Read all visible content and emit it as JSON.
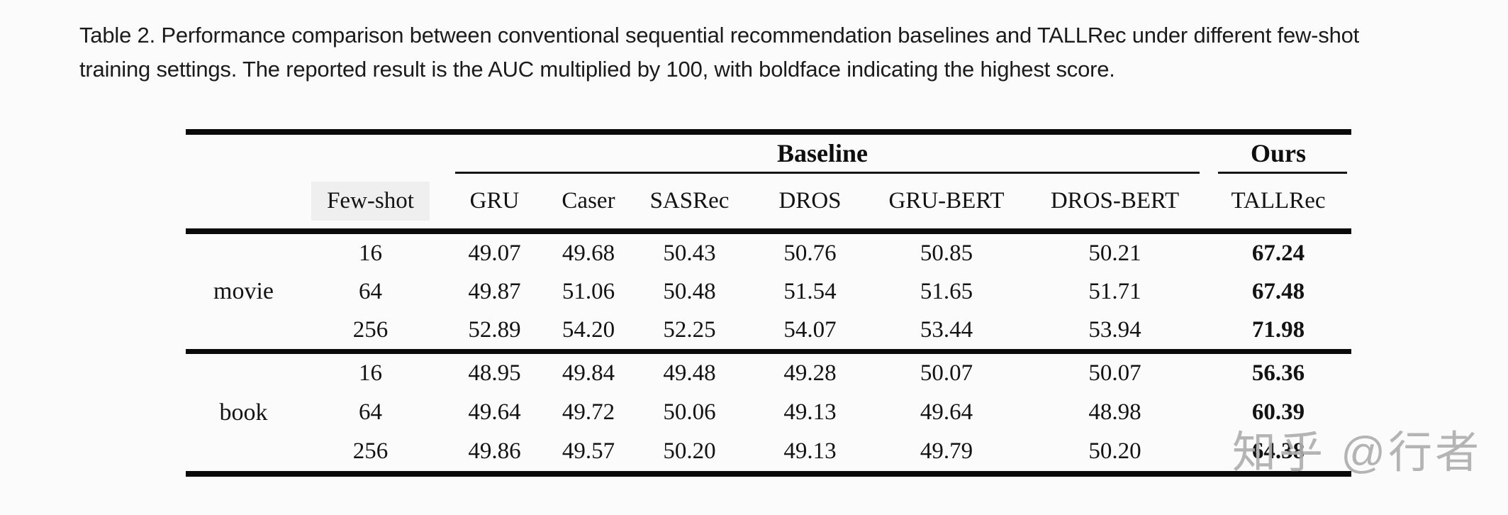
{
  "caption": {
    "line1": "Table 2.  Performance comparison between conventional sequential recommendation baselines and TALLRec under different few-shot",
    "line2": "training settings. The reported result is the AUC multiplied by 100, with boldface indicating the highest score."
  },
  "table": {
    "group_headers": {
      "baseline": "Baseline",
      "ours": "Ours"
    },
    "column_headers": [
      "Few-shot",
      "GRU",
      "Caser",
      "SASRec",
      "DROS",
      "GRU-BERT",
      "DROS-BERT",
      "TALLRec"
    ],
    "sections": [
      {
        "label": "movie",
        "rows": [
          {
            "few_shot": "16",
            "values": [
              "49.07",
              "49.68",
              "50.43",
              "50.76",
              "50.85",
              "50.21"
            ],
            "ours": "67.24"
          },
          {
            "few_shot": "64",
            "values": [
              "49.87",
              "51.06",
              "50.48",
              "51.54",
              "51.65",
              "51.71"
            ],
            "ours": "67.48"
          },
          {
            "few_shot": "256",
            "values": [
              "52.89",
              "54.20",
              "52.25",
              "54.07",
              "53.44",
              "53.94"
            ],
            "ours": "71.98"
          }
        ]
      },
      {
        "label": "book",
        "rows": [
          {
            "few_shot": "16",
            "values": [
              "48.95",
              "49.84",
              "49.48",
              "49.28",
              "50.07",
              "50.07"
            ],
            "ours": "56.36"
          },
          {
            "few_shot": "64",
            "values": [
              "49.64",
              "49.72",
              "50.06",
              "49.13",
              "49.64",
              "48.98"
            ],
            "ours": "60.39"
          },
          {
            "few_shot": "256",
            "values": [
              "49.86",
              "49.57",
              "50.20",
              "49.13",
              "49.79",
              "50.20"
            ],
            "ours": "64.38"
          }
        ]
      }
    ]
  },
  "watermark": {
    "text": "知乎 @行者"
  },
  "colors": {
    "page_background": "#fbfbfb",
    "rule": "#0a0a0a",
    "highlight_bg": "#efefef",
    "watermark": "#aeaeae"
  }
}
